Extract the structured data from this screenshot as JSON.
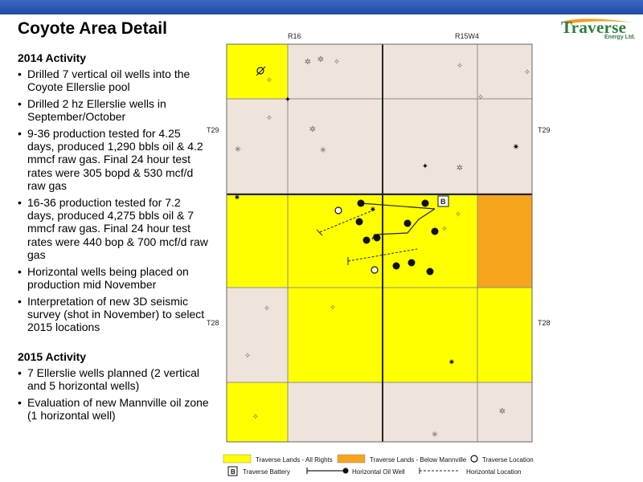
{
  "header": {
    "title": "Coyote Area Detail",
    "logo_text": "Traverse",
    "logo_sub": "Energy Ltd."
  },
  "activity_2014": {
    "title": "2014 Activity",
    "items": [
      "Drilled 7 vertical oil wells into the Coyote Ellerslie pool",
      "Drilled 2 hz Ellerslie wells in September/October",
      "9-36 production tested for 4.25 days, produced 1,290 bbls oil & 4.2 mmcf raw gas. Final 24 hour test rates were 305 bopd & 530 mcf/d raw gas",
      "16-36 production tested for 7.2 days, produced 4,275 bbls oil & 7 mmcf raw gas. Final 24 hour test rates were 440 bop & 700 mcf/d raw gas",
      "Horizontal wells being placed on production mid November",
      "Interpretation of new 3D seismic survey (shot in November) to select 2015 locations"
    ]
  },
  "activity_2015": {
    "title": "2015 Activity",
    "items": [
      "7 Ellerslie wells planned (2 vertical and 5 horizontal wells)",
      "Evaluation of new Mannville oil zone (1 horizontal well)"
    ]
  },
  "map": {
    "range_left": "R16",
    "range_right": "R15W4",
    "township_top_left": "T29",
    "township_top_right": "T29",
    "township_bottom_left": "T28",
    "township_bottom_right": "T28",
    "battery_label": "B",
    "colors": {
      "all_rights": "#ffff00",
      "below_mannville": "#f7a51c",
      "non_traverse": "#efe4dc",
      "grid_line": "#8c8c8c",
      "township_line": "#222222"
    }
  },
  "legend": {
    "all_rights": "Traverse Lands - All Rights",
    "below_mannville": "Traverse Lands - Below Mannville",
    "traverse_location": "Traverse Location",
    "battery_symbol": "B",
    "battery": "Traverse Battery",
    "hz_oil_well": "Horizontal Oil Well",
    "hz_location": "Horizontal Location"
  }
}
